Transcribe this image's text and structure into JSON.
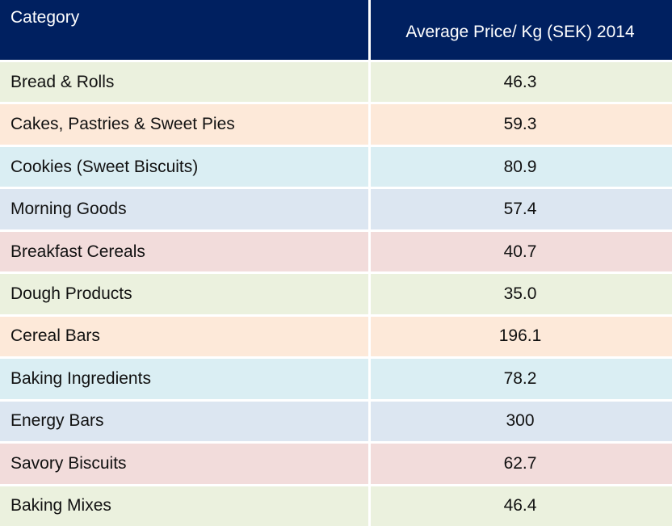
{
  "chart_data": {
    "type": "table",
    "columns": [
      "Category",
      "Average Price/ Kg (SEK) 2014"
    ],
    "rows": [
      {
        "category": "Bread & Rolls",
        "value": "46.3",
        "color": "#EBF1DE"
      },
      {
        "category": "Cakes, Pastries & Sweet Pies",
        "value": "59.3",
        "color": "#FDE9D9"
      },
      {
        "category": "Cookies (Sweet Biscuits)",
        "value": "80.9",
        "color": "#DAEEF3"
      },
      {
        "category": "Morning Goods",
        "value": "57.4",
        "color": "#DCE6F1"
      },
      {
        "category": "Breakfast Cereals",
        "value": "40.7",
        "color": "#F2DCDB"
      },
      {
        "category": "Dough Products",
        "value": "35.0",
        "color": "#EBF1DE"
      },
      {
        "category": "Cereal Bars",
        "value": "196.1",
        "color": "#FDE9D9"
      },
      {
        "category": "Baking Ingredients",
        "value": "78.2",
        "color": "#DAEEF3"
      },
      {
        "category": "Energy Bars",
        "value": "300",
        "color": "#DCE6F1"
      },
      {
        "category": "Savory Biscuits",
        "value": "62.7",
        "color": "#F2DCDB"
      },
      {
        "category": "Baking Mixes",
        "value": "46.4",
        "color": "#EBF1DE"
      }
    ],
    "header_color": "#002060"
  }
}
